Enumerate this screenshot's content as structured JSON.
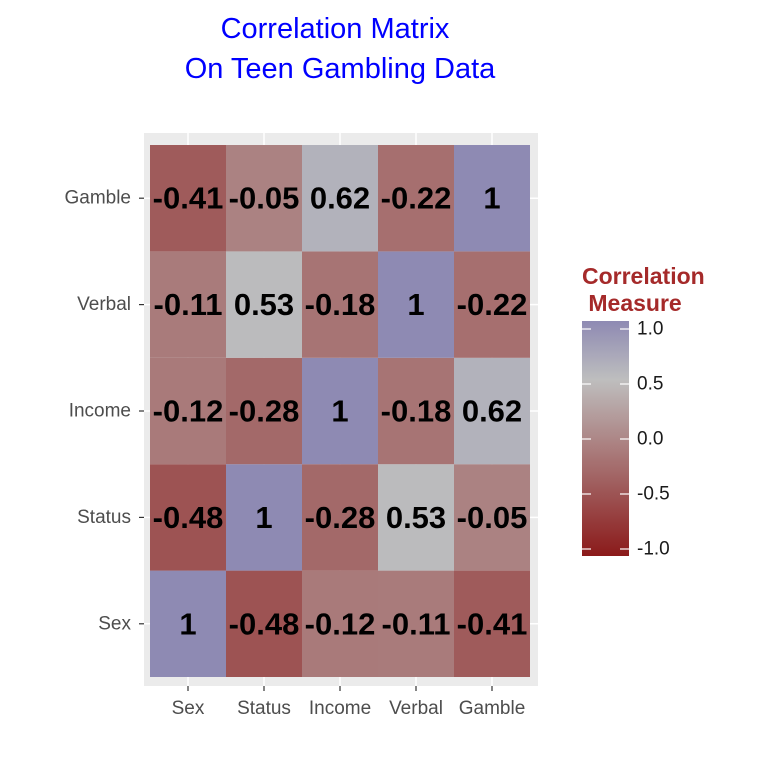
{
  "chart_data": {
    "type": "heatmap",
    "title_lines": [
      "Correlation Matrix",
      "On Teen Gambling Data"
    ],
    "title_color": "#0000ff",
    "x_categories": [
      "Sex",
      "Status",
      "Income",
      "Verbal",
      "Gamble"
    ],
    "y_categories": [
      "Sex",
      "Status",
      "Income",
      "Verbal",
      "Gamble"
    ],
    "matrix": [
      [
        1,
        -0.48,
        -0.12,
        -0.11,
        -0.41
      ],
      [
        -0.48,
        1,
        -0.28,
        0.53,
        -0.05
      ],
      [
        -0.12,
        -0.28,
        1,
        -0.18,
        0.62
      ],
      [
        -0.11,
        0.53,
        -0.18,
        1,
        -0.22
      ],
      [
        -0.41,
        -0.05,
        0.62,
        -0.22,
        1
      ]
    ],
    "cell_labels": [
      [
        "1",
        "-0.48",
        "-0.12",
        "-0.11",
        "-0.41"
      ],
      [
        "-0.48",
        "1",
        "-0.28",
        "0.53",
        "-0.05"
      ],
      [
        "-0.12",
        "-0.28",
        "1",
        "-0.18",
        "0.62"
      ],
      [
        "-0.11",
        "0.53",
        "-0.18",
        "1",
        "-0.22"
      ],
      [
        "-0.41",
        "-0.05",
        "0.62",
        "-0.22",
        "1"
      ]
    ],
    "color_scale": {
      "low": "#8b1a1a",
      "mid": "#bebebe",
      "high": "#8e8ab3",
      "midpoint": 0.5,
      "limits": [
        -1,
        1
      ]
    },
    "legend": {
      "title_lines": [
        "Correlation",
        " Measure"
      ],
      "title_color": "#a52a2a",
      "ticks": [
        1.0,
        0.5,
        0.0,
        -0.5,
        -1.0
      ],
      "tick_labels": [
        "1.0",
        "0.5",
        "0.0",
        "-0.5",
        "-1.0"
      ],
      "placement": "right"
    },
    "panel_background": "#ebebeb",
    "grid": true
  }
}
